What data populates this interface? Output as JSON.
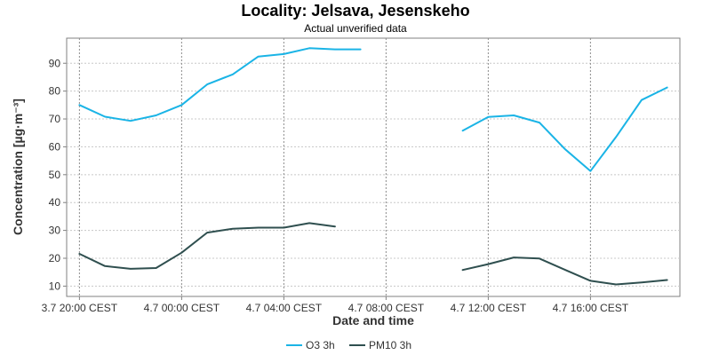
{
  "chart_data": {
    "type": "line",
    "title": "Locality: Jelsava, Jesenskeho",
    "subtitle": "Actual unverified data",
    "xlabel": "Date and time",
    "ylabel": "Concentration [µg·m⁻³]",
    "x": [
      "3.7 20:00",
      "3.7 21:00",
      "3.7 22:00",
      "3.7 23:00",
      "4.7 00:00",
      "4.7 01:00",
      "4.7 02:00",
      "4.7 03:00",
      "4.7 04:00",
      "4.7 05:00",
      "4.7 06:00",
      "4.7 07:00",
      "4.7 08:00",
      "4.7 09:00",
      "4.7 10:00",
      "4.7 11:00",
      "4.7 12:00",
      "4.7 13:00",
      "4.7 14:00",
      "4.7 15:00",
      "4.7 16:00",
      "4.7 17:00",
      "4.7 18:00",
      "4.7 19:00"
    ],
    "series": [
      {
        "name": "O3 3h",
        "color": "#1ab4e6",
        "values": [
          75,
          70.8,
          69.3,
          71.3,
          75,
          82.4,
          86,
          92.4,
          93.3,
          95.4,
          95,
          95,
          null,
          null,
          null,
          65.8,
          70.7,
          71.3,
          68.7,
          59.2,
          51.3,
          63.5,
          76.8,
          81.3
        ]
      },
      {
        "name": "PM10 3h",
        "color": "#2f4f4f",
        "values": [
          21.6,
          17.2,
          16.2,
          16.5,
          22,
          29.2,
          30.6,
          31,
          31,
          32.6,
          31.4,
          null,
          null,
          null,
          null,
          15.8,
          17.9,
          20.3,
          19.9,
          15.9,
          11.9,
          10.6,
          11.3,
          12.2
        ]
      }
    ],
    "x_ticks": [
      "3.7 20:00 CEST",
      "4.7 00:00 CEST",
      "4.7 04:00 CEST",
      "4.7 08:00 CEST",
      "4.7 12:00 CEST",
      "4.7 16:00 CEST"
    ],
    "x_tick_values": [
      "3.7 20:00",
      "4.7 00:00",
      "4.7 04:00",
      "4.7 08:00",
      "4.7 12:00",
      "4.7 16:00"
    ],
    "y_ticks": [
      10,
      20,
      30,
      40,
      50,
      60,
      70,
      80,
      90
    ],
    "xlim": [
      "3.7 19:30",
      "4.7 19:30"
    ],
    "ylim": [
      6.3,
      99
    ],
    "grid": true,
    "legend_position": "bottom-center"
  }
}
